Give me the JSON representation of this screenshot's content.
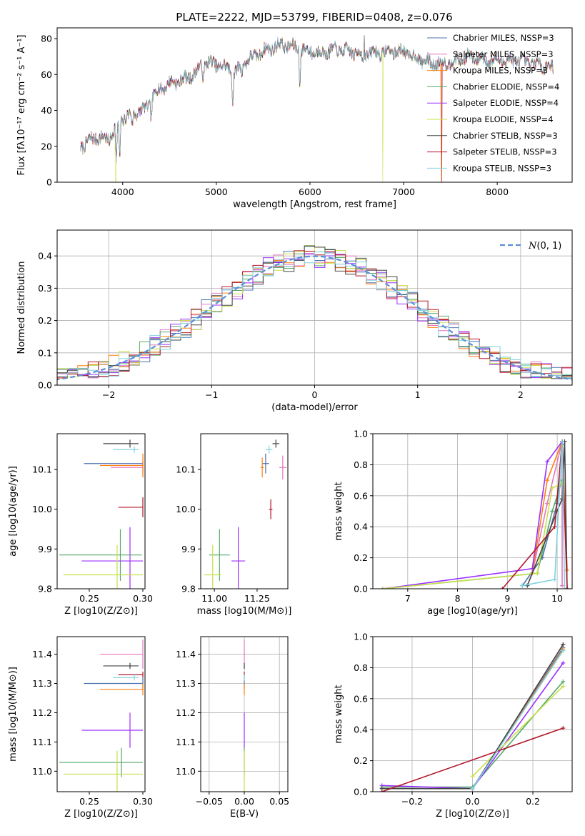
{
  "figure_title": "PLATE=2222, MJD=53799, FIBERID=0408, z=0.076",
  "colors": {
    "Chabrier MILES": "#4c72b0",
    "Salpeter MILES": "#e377c2",
    "Kroupa MILES": "#ff7f0e",
    "Chabrier ELODIE": "#55a868",
    "Salpeter ELODIE": "#9b30ff",
    "Kroupa ELODIE": "#c7e04a",
    "Chabrier STELIB": "#444444",
    "Salpeter STELIB": "#b2182b",
    "Kroupa STELIB": "#7fd3e0"
  },
  "chart_data": [
    {
      "id": "spectrum",
      "type": "line",
      "title": "PLATE=2222, MJD=53799, FIBERID=0408, z=0.076",
      "xlabel": "wavelength [Angstrom, rest frame]",
      "ylabel": "Flux [fλ10⁻¹⁷ erg cm⁻² s⁻¹ A⁻¹]",
      "xlim": [
        3300,
        8800
      ],
      "ylim": [
        0,
        86
      ],
      "xticks": [
        4000,
        5000,
        6000,
        7000,
        8000
      ],
      "yticks": [
        0,
        20,
        40,
        60,
        80
      ],
      "legend_position": "top-right",
      "series_names": [
        "Chabrier MILES, N_SSP=3",
        "Salpeter MILES, N_SSP=3",
        "Kroupa MILES, N_SSP=3",
        "Chabrier ELODIE, N_SSP=4",
        "Salpeter ELODIE, N_SSP=4",
        "Kroupa ELODIE, N_SSP=4",
        "Chabrier STELIB, N_SSP=3",
        "Salpeter STELIB, N_SSP=3",
        "Kroupa STELIB, N_SSP=3"
      ],
      "legend_labels": [
        "Chabrier MILES, NSSP=3",
        "Salpeter MILES, NSSP=3",
        "Kroupa MILES, NSSP=3",
        "Chabrier ELODIE, NSSP=4",
        "Salpeter ELODIE, NSSP=4",
        "Kroupa ELODIE, NSSP=4",
        "Chabrier STELIB, NSSP=3",
        "Salpeter STELIB, NSSP=3",
        "Kroupa STELIB, NSSP=3"
      ],
      "continuum": {
        "x": [
          3550,
          3700,
          3850,
          3950,
          4050,
          4150,
          4250,
          4350,
          4500,
          4700,
          4900,
          5100,
          5200,
          5300,
          5500,
          5700,
          5900,
          6100,
          6300,
          6500,
          6700,
          6900,
          7000,
          7100,
          7300,
          7500,
          7700,
          7900,
          8100,
          8300,
          8500,
          8600
        ],
        "y": [
          20,
          25,
          24,
          33,
          37,
          39,
          41,
          50,
          55,
          58,
          67,
          64,
          61,
          67,
          73,
          77,
          74,
          72,
          74,
          72,
          72,
          73,
          73,
          70,
          66,
          67,
          70,
          68,
          68,
          67,
          65,
          64
        ]
      },
      "absorption_dips": [
        [
          3933,
          24
        ],
        [
          3968,
          22
        ],
        [
          4102,
          8
        ],
        [
          4304,
          10
        ],
        [
          4861,
          8
        ],
        [
          5175,
          18
        ],
        [
          5270,
          6
        ],
        [
          5892,
          20
        ],
        [
          6563,
          6
        ]
      ],
      "spikes": [
        {
          "series": "Kroupa ELODIE",
          "x": 3925,
          "y": 0
        },
        {
          "series": "Kroupa ELODIE",
          "x": 6780,
          "y": 0
        },
        {
          "series": "Salpeter STELIB",
          "x": 7410,
          "y": 0
        },
        {
          "series": "Kroupa MILES",
          "x": 7400,
          "y": 0
        },
        {
          "series": "Chabrier STELIB",
          "x": 6580,
          "y": 82
        }
      ]
    },
    {
      "id": "residuals",
      "type": "histogram",
      "xlabel": "(data-model)/error",
      "ylabel": "Normed distribution",
      "xlim": [
        -2.5,
        2.5
      ],
      "ylim": [
        0,
        0.48
      ],
      "xticks": [
        -2,
        -1,
        0,
        1,
        2
      ],
      "yticks": [
        0.0,
        0.1,
        0.2,
        0.3,
        0.4
      ],
      "grid": true,
      "legend_position": "top-right",
      "reference_curve": {
        "name": "N(0,1)",
        "style": "dashed",
        "mean": 0,
        "sigma": 1
      },
      "bin_width": 0.1
    },
    {
      "id": "age-vs-Z",
      "type": "errorbar",
      "xlabel": "Z [log10(Z/Z⊙)]",
      "ylabel": "age [log10(age/yr)]",
      "xlim": [
        0.22,
        0.302
      ],
      "ylim": [
        9.8,
        10.19
      ],
      "xticks": [
        0.25,
        0.3
      ],
      "yticks": [
        9.8,
        9.9,
        10.0,
        10.1
      ],
      "points": [
        {
          "series": "Chabrier MILES",
          "x": 0.3,
          "xerr": [
            0.055,
            0.0
          ],
          "y": 10.115,
          "yerr": 0.005
        },
        {
          "series": "Salpeter MILES",
          "x": 0.3,
          "xerr": [
            0.03,
            0.0
          ],
          "y": 10.105,
          "yerr": 0.015
        },
        {
          "series": "Kroupa MILES",
          "x": 0.3,
          "xerr": [
            0.04,
            0.0
          ],
          "y": 10.11,
          "yerr": 0.03
        },
        {
          "series": "Chabrier ELODIE",
          "x": 0.279,
          "xerr": [
            0.057,
            0.02
          ],
          "y": 9.885,
          "yerr": 0.065
        },
        {
          "series": "Salpeter ELODIE",
          "x": 0.288,
          "xerr": [
            0.045,
            0.012
          ],
          "y": 9.87,
          "yerr": 0.085
        },
        {
          "series": "Kroupa ELODIE",
          "x": 0.276,
          "xerr": [
            0.05,
            0.024
          ],
          "y": 9.835,
          "yerr": 0.075
        },
        {
          "series": "Chabrier STELIB",
          "x": 0.288,
          "xerr": [
            0.025,
            0.008
          ],
          "y": 10.165,
          "yerr": 0.01
        },
        {
          "series": "Salpeter STELIB",
          "x": 0.3,
          "xerr": [
            0.023,
            0.0
          ],
          "y": 10.005,
          "yerr": 0.025
        },
        {
          "series": "Kroupa STELIB",
          "x": 0.292,
          "xerr": [
            0.02,
            0.004
          ],
          "y": 10.15,
          "yerr": 0.008
        }
      ]
    },
    {
      "id": "age-vs-mass",
      "type": "errorbar",
      "xlabel": "mass [log10(M/M⊙)]",
      "ylabel": "",
      "xlim": [
        10.92,
        11.43
      ],
      "ylim": [
        9.8,
        10.19
      ],
      "xticks": [
        11.0,
        11.25
      ],
      "yticks": [
        9.8,
        9.9,
        10.0,
        10.1
      ],
      "points": [
        {
          "series": "Chabrier MILES",
          "x": 11.3,
          "xerr": 0.02,
          "y": 10.115,
          "yerr": 0.025
        },
        {
          "series": "Salpeter MILES",
          "x": 11.4,
          "xerr": 0.02,
          "y": 10.105,
          "yerr": 0.03
        },
        {
          "series": "Kroupa MILES",
          "x": 11.28,
          "xerr": 0.01,
          "y": 10.105,
          "yerr": 0.025
        },
        {
          "series": "Chabrier ELODIE",
          "x": 11.03,
          "xerr": 0.06,
          "y": 9.885,
          "yerr": 0.065
        },
        {
          "series": "Salpeter ELODIE",
          "x": 11.14,
          "xerr": 0.04,
          "y": 9.87,
          "yerr": 0.085
        },
        {
          "series": "Kroupa ELODIE",
          "x": 10.99,
          "xerr": 0.05,
          "y": 9.835,
          "yerr": 0.075
        },
        {
          "series": "Chabrier STELIB",
          "x": 11.36,
          "xerr": 0.02,
          "y": 10.165,
          "yerr": 0.01
        },
        {
          "series": "Salpeter STELIB",
          "x": 11.33,
          "xerr": 0.01,
          "y": 10.0,
          "yerr": 0.025
        },
        {
          "series": "Kroupa STELIB",
          "x": 11.32,
          "xerr": 0.02,
          "y": 10.15,
          "yerr": 0.01
        }
      ]
    },
    {
      "id": "mass-weight-vs-age",
      "type": "line",
      "xlabel": "age [log10(age/yr)]",
      "ylabel": "mass weight",
      "xlim": [
        6.3,
        10.3
      ],
      "ylim": [
        0,
        1.0
      ],
      "xticks": [
        7,
        8,
        9,
        10
      ],
      "yticks": [
        0.0,
        0.2,
        0.4,
        0.6,
        0.8,
        1.0
      ],
      "grid": true,
      "series": [
        {
          "name": "Chabrier MILES",
          "x": [
            9.3,
            9.7,
            10.0,
            10.1
          ],
          "y": [
            0.02,
            0.2,
            0.55,
            0.93
          ]
        },
        {
          "name": "Salpeter MILES",
          "x": [
            9.5,
            9.8,
            10.1,
            10.1
          ],
          "y": [
            0.1,
            0.55,
            0.95,
            0.02
          ]
        },
        {
          "name": "Kroupa MILES",
          "x": [
            9.5,
            9.8,
            10.1,
            10.2
          ],
          "y": [
            0.1,
            0.7,
            0.95,
            0.12
          ]
        },
        {
          "name": "Chabrier ELODIE",
          "x": [
            6.5,
            9.6,
            9.9,
            10.1
          ],
          "y": [
            0.0,
            0.1,
            0.5,
            0.7
          ]
        },
        {
          "name": "Salpeter ELODIE",
          "x": [
            6.5,
            9.5,
            9.8,
            10.1
          ],
          "y": [
            0.0,
            0.13,
            0.82,
            0.95
          ]
        },
        {
          "name": "Kroupa ELODIE",
          "x": [
            6.5,
            9.6,
            9.9,
            10.1
          ],
          "y": [
            0.0,
            0.1,
            0.65,
            0.68
          ]
        },
        {
          "name": "Chabrier STELIB",
          "x": [
            9.4,
            10.1,
            10.15,
            10.2
          ],
          "y": [
            0.02,
            0.58,
            0.95,
            0.0
          ]
        },
        {
          "name": "Salpeter STELIB",
          "x": [
            8.9,
            9.95,
            10.1,
            10.2
          ],
          "y": [
            0.0,
            0.4,
            0.95,
            0.0
          ]
        },
        {
          "name": "Kroupa STELIB",
          "x": [
            9.3,
            9.95,
            10.1,
            10.15
          ],
          "y": [
            0.02,
            0.06,
            0.95,
            0.0
          ]
        }
      ]
    },
    {
      "id": "mass-vs-Z",
      "type": "errorbar",
      "xlabel": "Z [log10(Z/Z⊙)]",
      "ylabel": "mass [log10(M/M⊙)]",
      "xlim": [
        0.22,
        0.302
      ],
      "ylim": [
        10.93,
        11.46
      ],
      "xticks": [
        0.25,
        0.3
      ],
      "yticks": [
        11.0,
        11.1,
        11.2,
        11.3,
        11.4
      ],
      "points": [
        {
          "series": "Chabrier MILES",
          "x": 0.3,
          "xerr": [
            0.055,
            0.0
          ],
          "y": 11.3,
          "yerr": 0.02
        },
        {
          "series": "Salpeter MILES",
          "x": 0.3,
          "xerr": [
            0.04,
            0.0
          ],
          "y": 11.4,
          "yerr": 0.05
        },
        {
          "series": "Kroupa MILES",
          "x": 0.3,
          "xerr": [
            0.04,
            0.0
          ],
          "y": 11.28,
          "yerr": 0.02
        },
        {
          "series": "Chabrier ELODIE",
          "x": 0.28,
          "xerr": [
            0.058,
            0.02
          ],
          "y": 11.03,
          "yerr": 0.05
        },
        {
          "series": "Salpeter ELODIE",
          "x": 0.288,
          "xerr": [
            0.045,
            0.012
          ],
          "y": 11.14,
          "yerr": 0.06
        },
        {
          "series": "Kroupa ELODIE",
          "x": 0.276,
          "xerr": [
            0.05,
            0.024
          ],
          "y": 10.99,
          "yerr": 0.08
        },
        {
          "series": "Chabrier STELIB",
          "x": 0.288,
          "xerr": [
            0.025,
            0.008
          ],
          "y": 11.36,
          "yerr": 0.01
        },
        {
          "series": "Salpeter STELIB",
          "x": 0.3,
          "xerr": [
            0.023,
            0.0
          ],
          "y": 11.33,
          "yerr": 0.01
        },
        {
          "series": "Kroupa STELIB",
          "x": 0.292,
          "xerr": [
            0.02,
            0.004
          ],
          "y": 11.32,
          "yerr": 0.01
        }
      ]
    },
    {
      "id": "mass-vs-EBV",
      "type": "errorbar",
      "xlabel": "E(B-V)",
      "ylabel": "",
      "xlim": [
        -0.062,
        0.062
      ],
      "ylim": [
        10.93,
        11.46
      ],
      "xticks": [
        -0.05,
        0.0,
        0.05
      ],
      "yticks": [
        11.0,
        11.1,
        11.2,
        11.3,
        11.4
      ],
      "grid": true,
      "points": [
        {
          "series": "Chabrier MILES",
          "x": 0,
          "y": 11.3,
          "yerr": 0.02
        },
        {
          "series": "Salpeter MILES",
          "x": 0,
          "y": 11.4,
          "yerr": 0.05
        },
        {
          "series": "Kroupa MILES",
          "x": 0,
          "y": 11.28,
          "yerr": 0.02
        },
        {
          "series": "Chabrier ELODIE",
          "x": 0,
          "y": 11.03,
          "yerr": 0.05
        },
        {
          "series": "Salpeter ELODIE",
          "x": 0,
          "y": 11.14,
          "yerr": 0.06
        },
        {
          "series": "Kroupa ELODIE",
          "x": 0,
          "y": 10.99,
          "yerr": 0.08
        },
        {
          "series": "Chabrier STELIB",
          "x": 0,
          "y": 11.36,
          "yerr": 0.01
        },
        {
          "series": "Salpeter STELIB",
          "x": 0,
          "y": 11.33,
          "yerr": 0.01
        },
        {
          "series": "Kroupa STELIB",
          "x": 0,
          "y": 11.32,
          "yerr": 0.01
        }
      ]
    },
    {
      "id": "mass-weight-vs-Z",
      "type": "line",
      "xlabel": "Z [log10(Z/Z⊙)]",
      "ylabel": "mass weight",
      "xlim": [
        -0.33,
        0.33
      ],
      "ylim": [
        0,
        1.0
      ],
      "xticks": [
        -0.2,
        0.0,
        0.2
      ],
      "yticks": [
        0.0,
        0.2,
        0.4,
        0.6,
        0.8,
        1.0
      ],
      "grid": true,
      "series": [
        {
          "name": "Chabrier MILES",
          "x": [
            0.0,
            0.3
          ],
          "y": [
            0.02,
            0.93
          ]
        },
        {
          "name": "Salpeter MILES",
          "x": [
            0.0,
            0.3
          ],
          "y": [
            0.02,
            0.95
          ]
        },
        {
          "name": "Kroupa MILES",
          "x": [
            0.0,
            0.3
          ],
          "y": [
            0.02,
            0.92
          ]
        },
        {
          "name": "Chabrier ELODIE",
          "x": [
            -0.3,
            0.0,
            0.3
          ],
          "y": [
            0.03,
            0.03,
            0.71
          ]
        },
        {
          "name": "Salpeter ELODIE",
          "x": [
            -0.3,
            0.0,
            0.3
          ],
          "y": [
            0.04,
            0.02,
            0.83
          ]
        },
        {
          "name": "Kroupa ELODIE",
          "x": [
            0.0,
            0.3
          ],
          "y": [
            0.1,
            0.68
          ]
        },
        {
          "name": "Chabrier STELIB",
          "x": [
            -0.3,
            0.0,
            0.3
          ],
          "y": [
            0.02,
            0.02,
            0.95
          ]
        },
        {
          "name": "Salpeter STELIB",
          "x": [
            -0.3,
            0.3
          ],
          "y": [
            0.0,
            0.41
          ]
        },
        {
          "name": "Kroupa STELIB",
          "x": [
            0.0,
            0.3
          ],
          "y": [
            0.02,
            0.91
          ]
        }
      ]
    }
  ]
}
